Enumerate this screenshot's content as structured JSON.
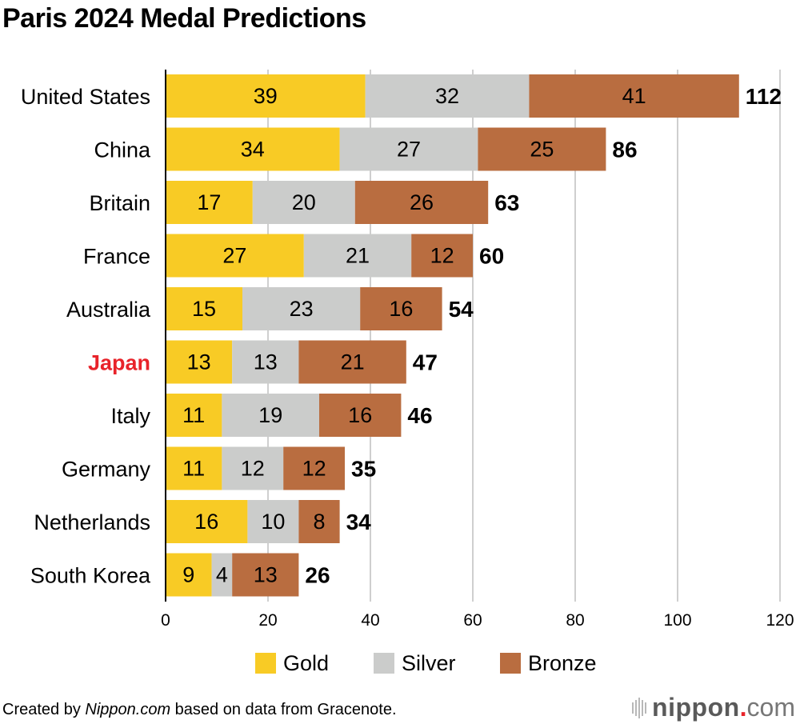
{
  "chart_data": {
    "type": "bar",
    "orientation": "horizontal",
    "stacked": true,
    "title": "Paris 2024 Medal Predictions",
    "xlabel": "",
    "ylabel": "",
    "xlim": [
      0,
      120
    ],
    "xticks": [
      0,
      20,
      40,
      60,
      80,
      100,
      120
    ],
    "grid": true,
    "legend_position": "bottom-center",
    "categories": [
      "United States",
      "China",
      "Britain",
      "France",
      "Australia",
      "Japan",
      "Italy",
      "Germany",
      "Netherlands",
      "South Korea"
    ],
    "highlight_category": "Japan",
    "highlight_color": "#e8232a",
    "series": [
      {
        "name": "Gold",
        "color": "#f8cb25",
        "values": [
          39,
          34,
          17,
          27,
          15,
          13,
          11,
          11,
          16,
          9
        ]
      },
      {
        "name": "Silver",
        "color": "#cbcccb",
        "values": [
          32,
          27,
          20,
          21,
          23,
          13,
          19,
          12,
          10,
          4
        ]
      },
      {
        "name": "Bronze",
        "color": "#b96d40",
        "values": [
          41,
          25,
          26,
          12,
          16,
          21,
          16,
          12,
          8,
          13
        ]
      }
    ],
    "totals": [
      112,
      86,
      63,
      60,
      54,
      47,
      46,
      35,
      34,
      26
    ]
  },
  "footer": {
    "prefix": "Created by ",
    "source_italic": "Nippon.com",
    "suffix": " based on data from Gracenote."
  },
  "logo": {
    "name": "nippon",
    "dot": ".",
    "tld": "com"
  }
}
